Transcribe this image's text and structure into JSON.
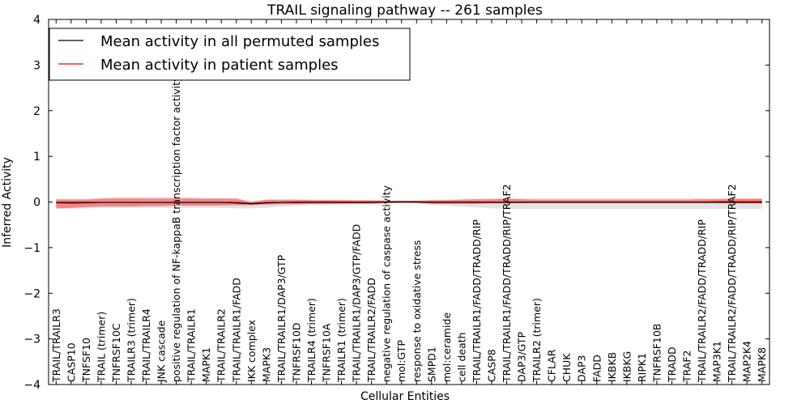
{
  "chart_data": {
    "type": "line",
    "title": "TRAIL signaling pathway -- 261 samples",
    "xlabel": "Cellular Entities",
    "ylabel": "Inferred Activity",
    "ylim": [
      -4,
      4
    ],
    "yticks": [
      -4,
      -3,
      -2,
      -1,
      0,
      1,
      2,
      3,
      4
    ],
    "grid": false,
    "legend_position": "top-left",
    "categories": [
      "TRAIL/TRAILR3",
      "CASP10",
      "TNFSF10",
      "TRAIL (trimer)",
      "TNFRSF10C",
      "TRAILR3 (trimer)",
      "TRAIL/TRAILR4",
      "JNK cascade",
      "positive regulation of NF-kappaB transcription factor activity",
      "TRAIL/TRAILR1",
      "MAPK1",
      "TRAIL/TRAILR2",
      "TRAIL/TRAILR1/FADD",
      "IKK complex",
      "MAPK3",
      "TRAIL/TRAILR1/DAP3/GTP",
      "TNFRSF10D",
      "TRAILR4 (trimer)",
      "TNFRSF10A",
      "TRAILR1 (trimer)",
      "TRAIL/TRAILR1/DAP3/GTP/FADD",
      "TRAIL/TRAILR2/FADD",
      "negative regulation of caspase activity",
      "mol:GTP",
      "response to oxidative stress",
      "SMPD1",
      "mol:ceramide",
      "cell death",
      "TRAIL/TRAILR1/FADD/TRADD/RIP",
      "CASP8",
      "TRAIL/TRAILR1/FADD/TRADD/RIP/TRAF2",
      "DAP3/GTP",
      "TRAILR2 (trimer)",
      "CFLAR",
      "CHUK",
      "DAP3",
      "FADD",
      "IKBKB",
      "IKBKG",
      "RIPK1",
      "TNFRSF10B",
      "TRADD",
      "TRAF2",
      "TRAIL/TRAILR2/FADD/TRADD/RIP",
      "MAP3K1",
      "TRAIL/TRAILR2/FADD/TRADD/RIP/TRAF2",
      "MAP2K4",
      "MAPK8"
    ],
    "series": [
      {
        "name": "Mean activity in all permuted samples",
        "color": "#000000",
        "values": [
          -0.01,
          -0.01,
          -0.01,
          -0.01,
          -0.01,
          -0.01,
          -0.01,
          -0.01,
          -0.01,
          -0.01,
          -0.01,
          -0.01,
          -0.02,
          -0.04,
          -0.02,
          -0.01,
          -0.01,
          -0.01,
          -0.01,
          -0.01,
          -0.01,
          -0.01,
          0.0,
          0.0,
          0.0,
          -0.01,
          -0.01,
          -0.01,
          -0.01,
          -0.01,
          -0.01,
          -0.01,
          -0.01,
          -0.01,
          -0.01,
          -0.01,
          -0.01,
          -0.01,
          -0.01,
          -0.01,
          -0.01,
          -0.01,
          -0.01,
          -0.01,
          -0.01,
          -0.01,
          -0.01,
          -0.01
        ],
        "lower": [
          -0.15,
          -0.15,
          -0.14,
          -0.13,
          -0.13,
          -0.13,
          -0.13,
          -0.13,
          -0.13,
          -0.13,
          -0.13,
          -0.13,
          -0.14,
          -0.14,
          -0.13,
          -0.1,
          -0.08,
          -0.07,
          -0.06,
          -0.05,
          -0.04,
          -0.04,
          -0.03,
          -0.02,
          -0.04,
          -0.06,
          -0.08,
          -0.1,
          -0.12,
          -0.14,
          -0.15,
          -0.15,
          -0.15,
          -0.15,
          -0.15,
          -0.15,
          -0.15,
          -0.15,
          -0.15,
          -0.15,
          -0.15,
          -0.15,
          -0.15,
          -0.15,
          -0.15,
          -0.15,
          -0.15,
          -0.15
        ],
        "upper": [
          0.05,
          0.04,
          0.05,
          0.06,
          0.06,
          0.06,
          0.06,
          0.06,
          0.06,
          0.06,
          0.06,
          0.06,
          0.05,
          0.02,
          0.05,
          0.05,
          0.05,
          0.05,
          0.05,
          0.04,
          0.03,
          0.03,
          0.02,
          0.02,
          0.03,
          0.04,
          0.05,
          0.06,
          0.07,
          0.08,
          0.08,
          0.08,
          0.08,
          0.08,
          0.08,
          0.08,
          0.08,
          0.08,
          0.08,
          0.08,
          0.08,
          0.08,
          0.08,
          0.08,
          0.08,
          0.08,
          0.08,
          0.08
        ]
      },
      {
        "name": "Mean activity in patient samples",
        "color": "#ff0000",
        "values": [
          -0.02,
          -0.03,
          -0.02,
          -0.01,
          -0.01,
          -0.01,
          -0.01,
          -0.01,
          -0.01,
          -0.01,
          -0.01,
          -0.01,
          -0.01,
          -0.03,
          -0.01,
          -0.01,
          0.0,
          0.0,
          0.0,
          0.0,
          0.0,
          0.0,
          0.0,
          0.0,
          0.0,
          0.0,
          0.0,
          0.0,
          0.0,
          0.0,
          0.0,
          0.0,
          0.0,
          0.0,
          0.0,
          0.0,
          0.0,
          0.0,
          0.0,
          0.0,
          0.0,
          0.0,
          0.0,
          0.0,
          0.01,
          0.01,
          0.01,
          0.01
        ],
        "lower": [
          -0.14,
          -0.13,
          -0.11,
          -0.1,
          -0.1,
          -0.1,
          -0.09,
          -0.09,
          -0.08,
          -0.08,
          -0.08,
          -0.08,
          -0.07,
          -0.07,
          -0.06,
          -0.05,
          -0.05,
          -0.04,
          -0.04,
          -0.04,
          -0.04,
          -0.04,
          -0.03,
          -0.02,
          -0.02,
          -0.04,
          -0.04,
          -0.04,
          -0.04,
          -0.03,
          -0.03,
          -0.02,
          -0.02,
          -0.02,
          -0.02,
          -0.02,
          -0.02,
          -0.02,
          -0.02,
          -0.02,
          -0.02,
          -0.02,
          -0.02,
          -0.02,
          -0.02,
          -0.03,
          -0.03,
          -0.03
        ],
        "upper": [
          0.06,
          0.06,
          0.06,
          0.08,
          0.09,
          0.09,
          0.09,
          0.09,
          0.09,
          0.09,
          0.08,
          0.08,
          0.08,
          0.0,
          0.05,
          0.05,
          0.05,
          0.04,
          0.04,
          0.04,
          0.04,
          0.04,
          0.03,
          0.03,
          0.03,
          0.04,
          0.04,
          0.05,
          0.06,
          0.06,
          0.07,
          0.06,
          0.05,
          0.05,
          0.05,
          0.05,
          0.05,
          0.05,
          0.05,
          0.05,
          0.05,
          0.05,
          0.05,
          0.06,
          0.06,
          0.07,
          0.07,
          0.07
        ]
      }
    ]
  }
}
